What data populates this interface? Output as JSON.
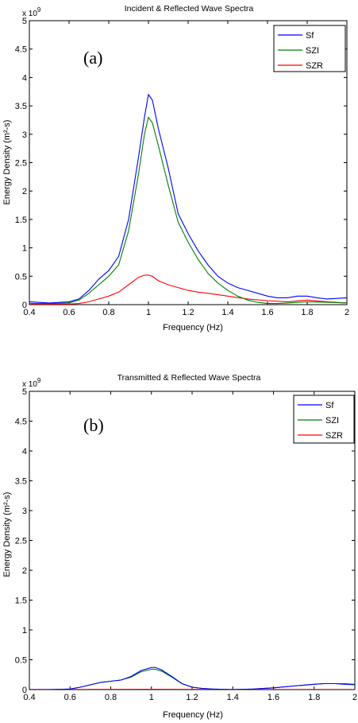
{
  "chart_data": [
    {
      "type": "line",
      "title": "Incident & Reflected Wave Spectra",
      "panel_label": "(a)",
      "xlabel": "Frequency (Hz)",
      "ylabel": "Energy Density (m²-s)",
      "y_multiplier": "x 10",
      "y_multiplier_exp": "9",
      "xlim": [
        0.4,
        2
      ],
      "ylim": [
        0,
        5
      ],
      "xticks": [
        "0.4",
        "0.6",
        "0.8",
        "1",
        "1.2",
        "1.4",
        "1.6",
        "1.8",
        "2"
      ],
      "yticks": [
        "0",
        "0.5",
        "1",
        "1.5",
        "2",
        "2.5",
        "3",
        "3.5",
        "4",
        "4.5",
        "5"
      ],
      "legend_position": "top-right",
      "series": [
        {
          "name": "Sf",
          "color": "#0000ff",
          "x": [
            0.4,
            0.5,
            0.6,
            0.65,
            0.7,
            0.75,
            0.8,
            0.85,
            0.9,
            0.95,
            0.98,
            1.0,
            1.02,
            1.05,
            1.1,
            1.15,
            1.2,
            1.25,
            1.3,
            1.35,
            1.4,
            1.45,
            1.5,
            1.55,
            1.6,
            1.65,
            1.7,
            1.75,
            1.8,
            1.85,
            1.9,
            2.0
          ],
          "y": [
            0.05,
            0.03,
            0.05,
            0.1,
            0.25,
            0.45,
            0.6,
            0.85,
            1.5,
            2.6,
            3.3,
            3.7,
            3.6,
            3.1,
            2.4,
            1.6,
            1.25,
            0.95,
            0.7,
            0.5,
            0.38,
            0.3,
            0.25,
            0.2,
            0.15,
            0.12,
            0.12,
            0.15,
            0.15,
            0.12,
            0.1,
            0.12
          ]
        },
        {
          "name": "SZI",
          "color": "#008000",
          "x": [
            0.4,
            0.5,
            0.6,
            0.65,
            0.7,
            0.75,
            0.8,
            0.85,
            0.9,
            0.95,
            0.98,
            1.0,
            1.02,
            1.05,
            1.1,
            1.15,
            1.2,
            1.25,
            1.3,
            1.35,
            1.4,
            1.45,
            1.5,
            1.55,
            1.6,
            1.65,
            1.7,
            1.8,
            1.9,
            2.0
          ],
          "y": [
            0.02,
            0.02,
            0.03,
            0.08,
            0.2,
            0.35,
            0.5,
            0.7,
            1.3,
            2.3,
            3.0,
            3.3,
            3.2,
            2.8,
            2.1,
            1.45,
            1.1,
            0.8,
            0.55,
            0.38,
            0.25,
            0.15,
            0.08,
            0.04,
            0.02,
            0.02,
            0.03,
            0.05,
            0.04,
            0.03
          ]
        },
        {
          "name": "SZR",
          "color": "#ff0000",
          "x": [
            0.4,
            0.5,
            0.6,
            0.65,
            0.7,
            0.75,
            0.8,
            0.85,
            0.9,
            0.95,
            0.98,
            1.0,
            1.02,
            1.05,
            1.1,
            1.15,
            1.2,
            1.25,
            1.3,
            1.4,
            1.5,
            1.6,
            1.7,
            1.8,
            1.9,
            2.0
          ],
          "y": [
            0.01,
            0.01,
            0.01,
            0.02,
            0.05,
            0.1,
            0.15,
            0.22,
            0.35,
            0.48,
            0.52,
            0.52,
            0.5,
            0.42,
            0.35,
            0.3,
            0.25,
            0.22,
            0.2,
            0.15,
            0.1,
            0.07,
            0.05,
            0.08,
            0.05,
            0.03
          ]
        }
      ]
    },
    {
      "type": "line",
      "title": "Transmitted & Reflected Wave Spectra",
      "panel_label": "(b)",
      "xlabel": "Frequency (Hz)",
      "ylabel": "Energy Density (m²-s)",
      "y_multiplier": "x 10",
      "y_multiplier_exp": "9",
      "xlim": [
        0.4,
        2
      ],
      "ylim": [
        0,
        5
      ],
      "xticks": [
        "0.4",
        "0.6",
        "0.8",
        "1",
        "1.2",
        "1.4",
        "1.6",
        "1.8",
        "2"
      ],
      "yticks": [
        "0",
        "0.5",
        "1",
        "1.5",
        "2",
        "2.5",
        "3",
        "3.5",
        "4",
        "4.5",
        "5"
      ],
      "legend_position": "top-right",
      "series": [
        {
          "name": "Sf",
          "color": "#0000ff",
          "x": [
            0.4,
            0.5,
            0.6,
            0.65,
            0.7,
            0.75,
            0.8,
            0.85,
            0.9,
            0.95,
            1.0,
            1.02,
            1.05,
            1.1,
            1.15,
            1.2,
            1.25,
            1.3,
            1.4,
            1.5,
            1.6,
            1.7,
            1.8,
            1.85,
            1.9,
            1.95,
            2.0
          ],
          "y": [
            0.0,
            0.0,
            0.01,
            0.04,
            0.08,
            0.12,
            0.14,
            0.16,
            0.22,
            0.32,
            0.37,
            0.37,
            0.33,
            0.22,
            0.1,
            0.04,
            0.02,
            0.01,
            0.0,
            0.01,
            0.03,
            0.06,
            0.09,
            0.1,
            0.1,
            0.09,
            0.08
          ]
        },
        {
          "name": "SZI",
          "color": "#008000",
          "x": [
            0.4,
            0.5,
            0.6,
            0.65,
            0.7,
            0.75,
            0.8,
            0.85,
            0.9,
            0.95,
            1.0,
            1.02,
            1.05,
            1.1,
            1.15,
            1.2,
            1.25,
            1.3,
            1.4,
            1.5,
            1.6,
            1.7,
            1.8,
            1.85,
            1.9,
            1.95,
            2.0
          ],
          "y": [
            0.0,
            0.0,
            0.01,
            0.04,
            0.08,
            0.12,
            0.14,
            0.16,
            0.21,
            0.3,
            0.34,
            0.34,
            0.31,
            0.21,
            0.1,
            0.04,
            0.02,
            0.01,
            0.0,
            0.01,
            0.03,
            0.06,
            0.09,
            0.1,
            0.1,
            0.1,
            0.09
          ]
        },
        {
          "name": "SZR",
          "color": "#ff0000",
          "x": [
            0.4,
            0.6,
            0.8,
            1.0,
            1.2,
            1.4,
            1.6,
            1.8,
            2.0
          ],
          "y": [
            0.003,
            0.003,
            0.004,
            0.005,
            0.004,
            0.003,
            0.003,
            0.003,
            0.003
          ]
        }
      ]
    }
  ]
}
